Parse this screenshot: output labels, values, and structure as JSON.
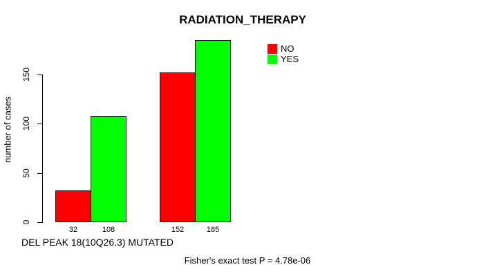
{
  "chart_data": {
    "type": "bar",
    "title": "RADIATION_THERAPY",
    "ylabel": "number of cases",
    "xlabel": "DEL PEAK 18(10Q26.3) MUTATED",
    "annotation": "Fisher's exact test P = 4.78e-06",
    "groups": 2,
    "series": [
      {
        "name": "NO",
        "color": "#ff0000",
        "values": [
          32,
          152
        ]
      },
      {
        "name": "YES",
        "color": "#00ff00",
        "values": [
          108,
          185
        ]
      }
    ],
    "bar_labels": [
      "32",
      "108",
      "152",
      "185"
    ],
    "yticks": [
      0,
      50,
      100,
      150
    ],
    "ylim": [
      0,
      185
    ],
    "grid": false,
    "legend_position": "top-right",
    "colors": {
      "no": "#ff0000",
      "yes": "#00ff00",
      "axis": "#000000",
      "background": "#ffffff"
    }
  }
}
